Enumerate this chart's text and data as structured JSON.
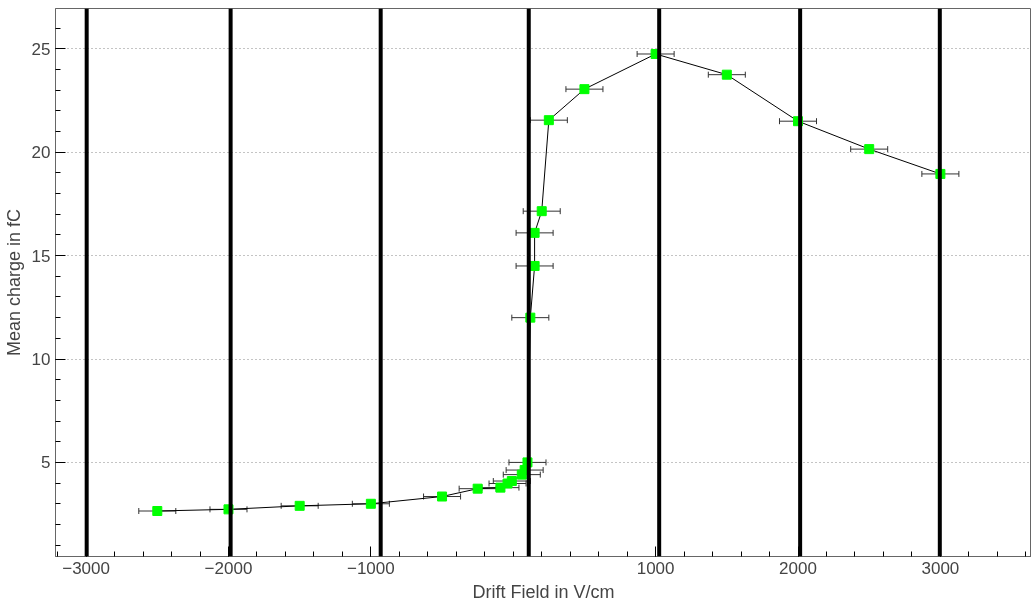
{
  "chart_data": {
    "type": "line",
    "xlabel": "Drift Field in V/cm",
    "ylabel": "Mean charge in fC",
    "x": [
      -2500,
      -2000,
      -1500,
      -1000,
      -500,
      -250,
      -90,
      -40,
      -10,
      60,
      80,
      100,
      120,
      150,
      150,
      200,
      250,
      500,
      1000,
      1500,
      2000,
      2500,
      3000
    ],
    "series": [
      {
        "color": "#00ff00",
        "values": [
          2.65,
          2.73,
          2.9,
          3.0,
          3.35,
          3.73,
          3.78,
          3.98,
          4.1,
          4.41,
          4.63,
          5.0,
          12.0,
          14.5,
          16.1,
          17.15,
          21.55,
          23.05,
          24.75,
          23.75,
          21.5,
          20.15,
          18.95
        ],
        "xerrors": [
          130,
          130,
          130,
          130,
          130,
          130,
          130,
          130,
          130,
          130,
          130,
          130,
          130,
          130,
          130,
          130,
          130,
          130,
          130,
          130,
          130,
          130,
          130
        ]
      }
    ],
    "xlim": [
      -3215,
      3640
    ],
    "ylim": [
      0.45,
      26.95
    ],
    "xticks": [
      -3000,
      -2000,
      -1000,
      1000,
      2000,
      3000
    ],
    "yticks": [
      5,
      10,
      15,
      20,
      25
    ],
    "grid": "y",
    "marker": "square",
    "line_style": "solid",
    "ref_lines": [
      {
        "axis": "x",
        "value": -2996,
        "color": "#000000"
      },
      {
        "axis": "x",
        "value": -1985,
        "color": "#000000"
      },
      {
        "axis": "x",
        "value": -931,
        "color": "#000000"
      },
      {
        "axis": "x",
        "value": 109,
        "color": "#000000"
      },
      {
        "axis": "x",
        "value": 1025,
        "color": "#000000"
      },
      {
        "axis": "x",
        "value": 2015,
        "color": "#000000"
      },
      {
        "axis": "x",
        "value": 2996,
        "color": "#000000"
      }
    ]
  }
}
